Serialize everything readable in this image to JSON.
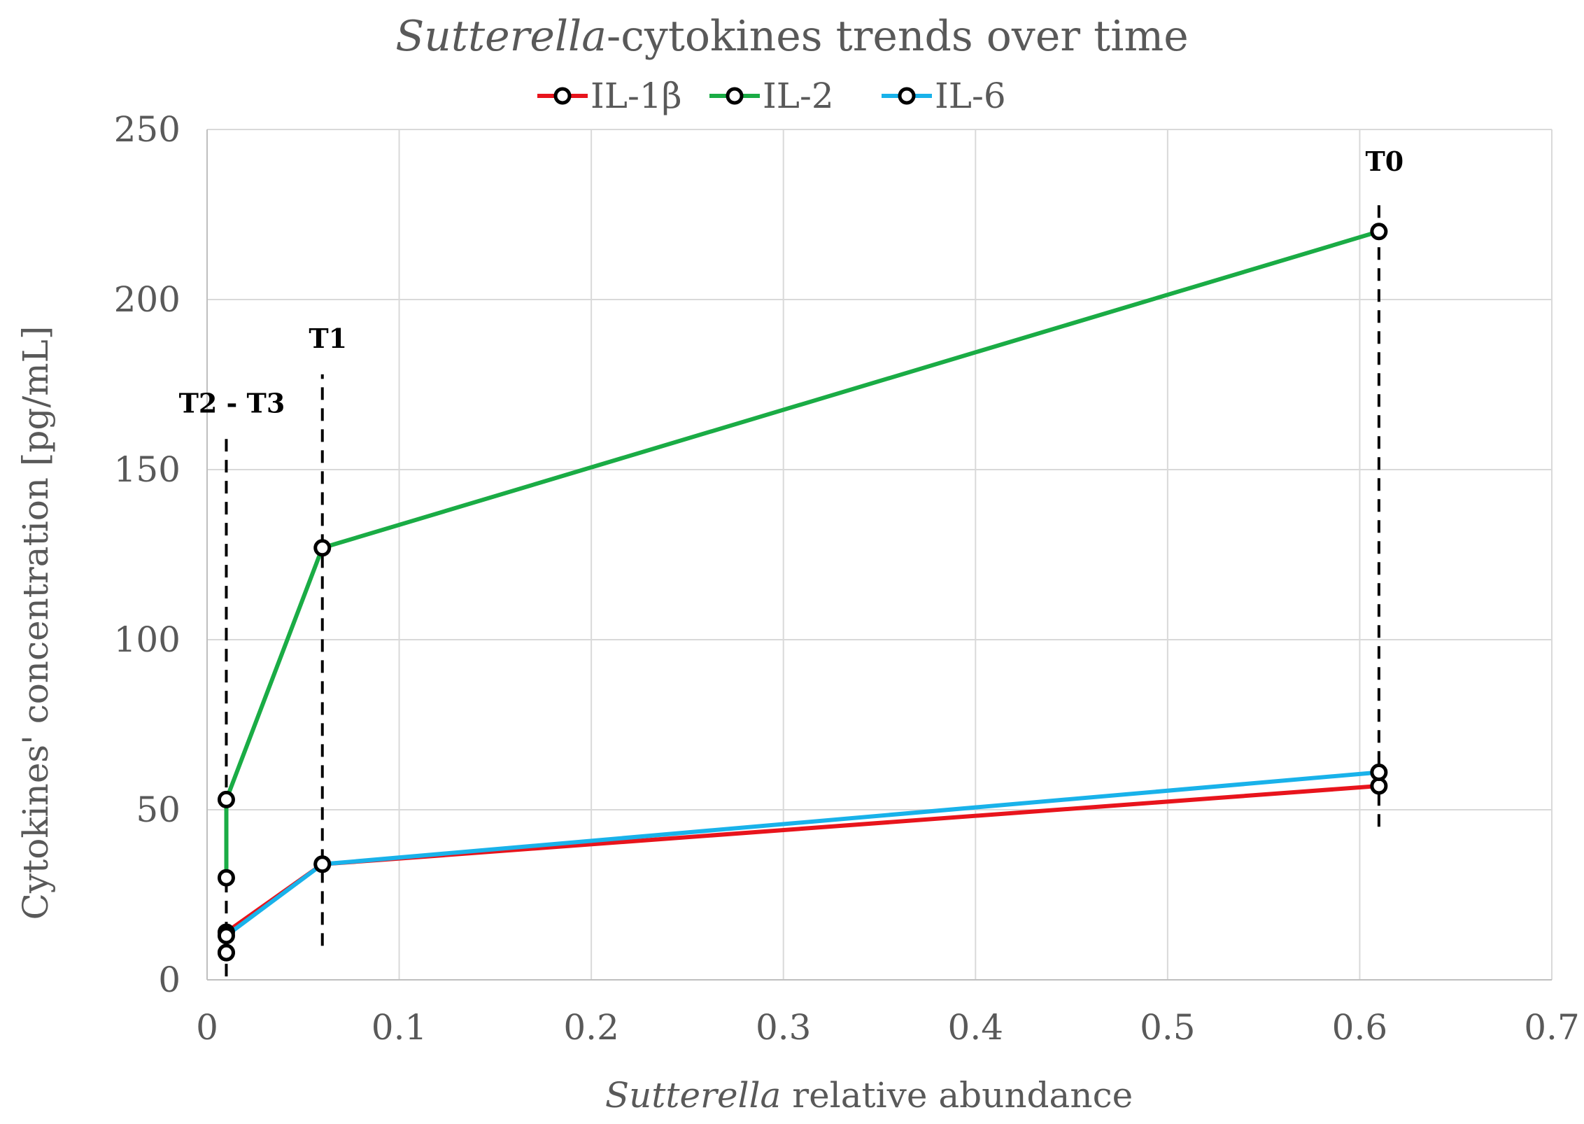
{
  "chart_data": {
    "type": "line",
    "title_italic": "Sutterella",
    "title_rest": "-cytokines trends over time",
    "xlabel_italic": "Sutterella",
    "xlabel_rest": " relative abundance",
    "ylabel": "Cytokines' concentration [pg/mL]",
    "xlim": [
      0,
      0.7
    ],
    "ylim": [
      0,
      250
    ],
    "x_ticks": [
      0,
      0.1,
      0.2,
      0.3,
      0.4,
      0.5,
      0.6,
      0.7
    ],
    "x_tick_labels": [
      "0",
      "0.1",
      "0.2",
      "0.3",
      "0.4",
      "0.5",
      "0.6",
      "0.7"
    ],
    "y_ticks": [
      0,
      50,
      100,
      150,
      200,
      250
    ],
    "y_tick_labels": [
      "0",
      "50",
      "100",
      "150",
      "200",
      "250"
    ],
    "grid": true,
    "legend_position": "top-center",
    "series": [
      {
        "name": "IL-1β",
        "color": "#e8141c",
        "x": [
          0.01,
          0.01,
          0.06,
          0.61
        ],
        "y": [
          8,
          14,
          34,
          57
        ]
      },
      {
        "name": "IL-2",
        "color": "#1aac45",
        "x": [
          0.01,
          0.01,
          0.06,
          0.61
        ],
        "y": [
          30,
          53,
          127,
          220
        ]
      },
      {
        "name": "IL-6",
        "color": "#19b2ea",
        "x": [
          0.01,
          0.01,
          0.06,
          0.61
        ],
        "y": [
          8,
          13,
          34,
          61
        ]
      }
    ],
    "annotations": [
      {
        "label": "T2 - T3",
        "x": 0.01,
        "y_from": 1,
        "y_to": 159
      },
      {
        "label": "T1",
        "x": 0.06,
        "y_from": 10,
        "y_to": 178
      },
      {
        "label": "T0",
        "x": 0.61,
        "y_from": 45,
        "y_to": 230
      }
    ]
  }
}
